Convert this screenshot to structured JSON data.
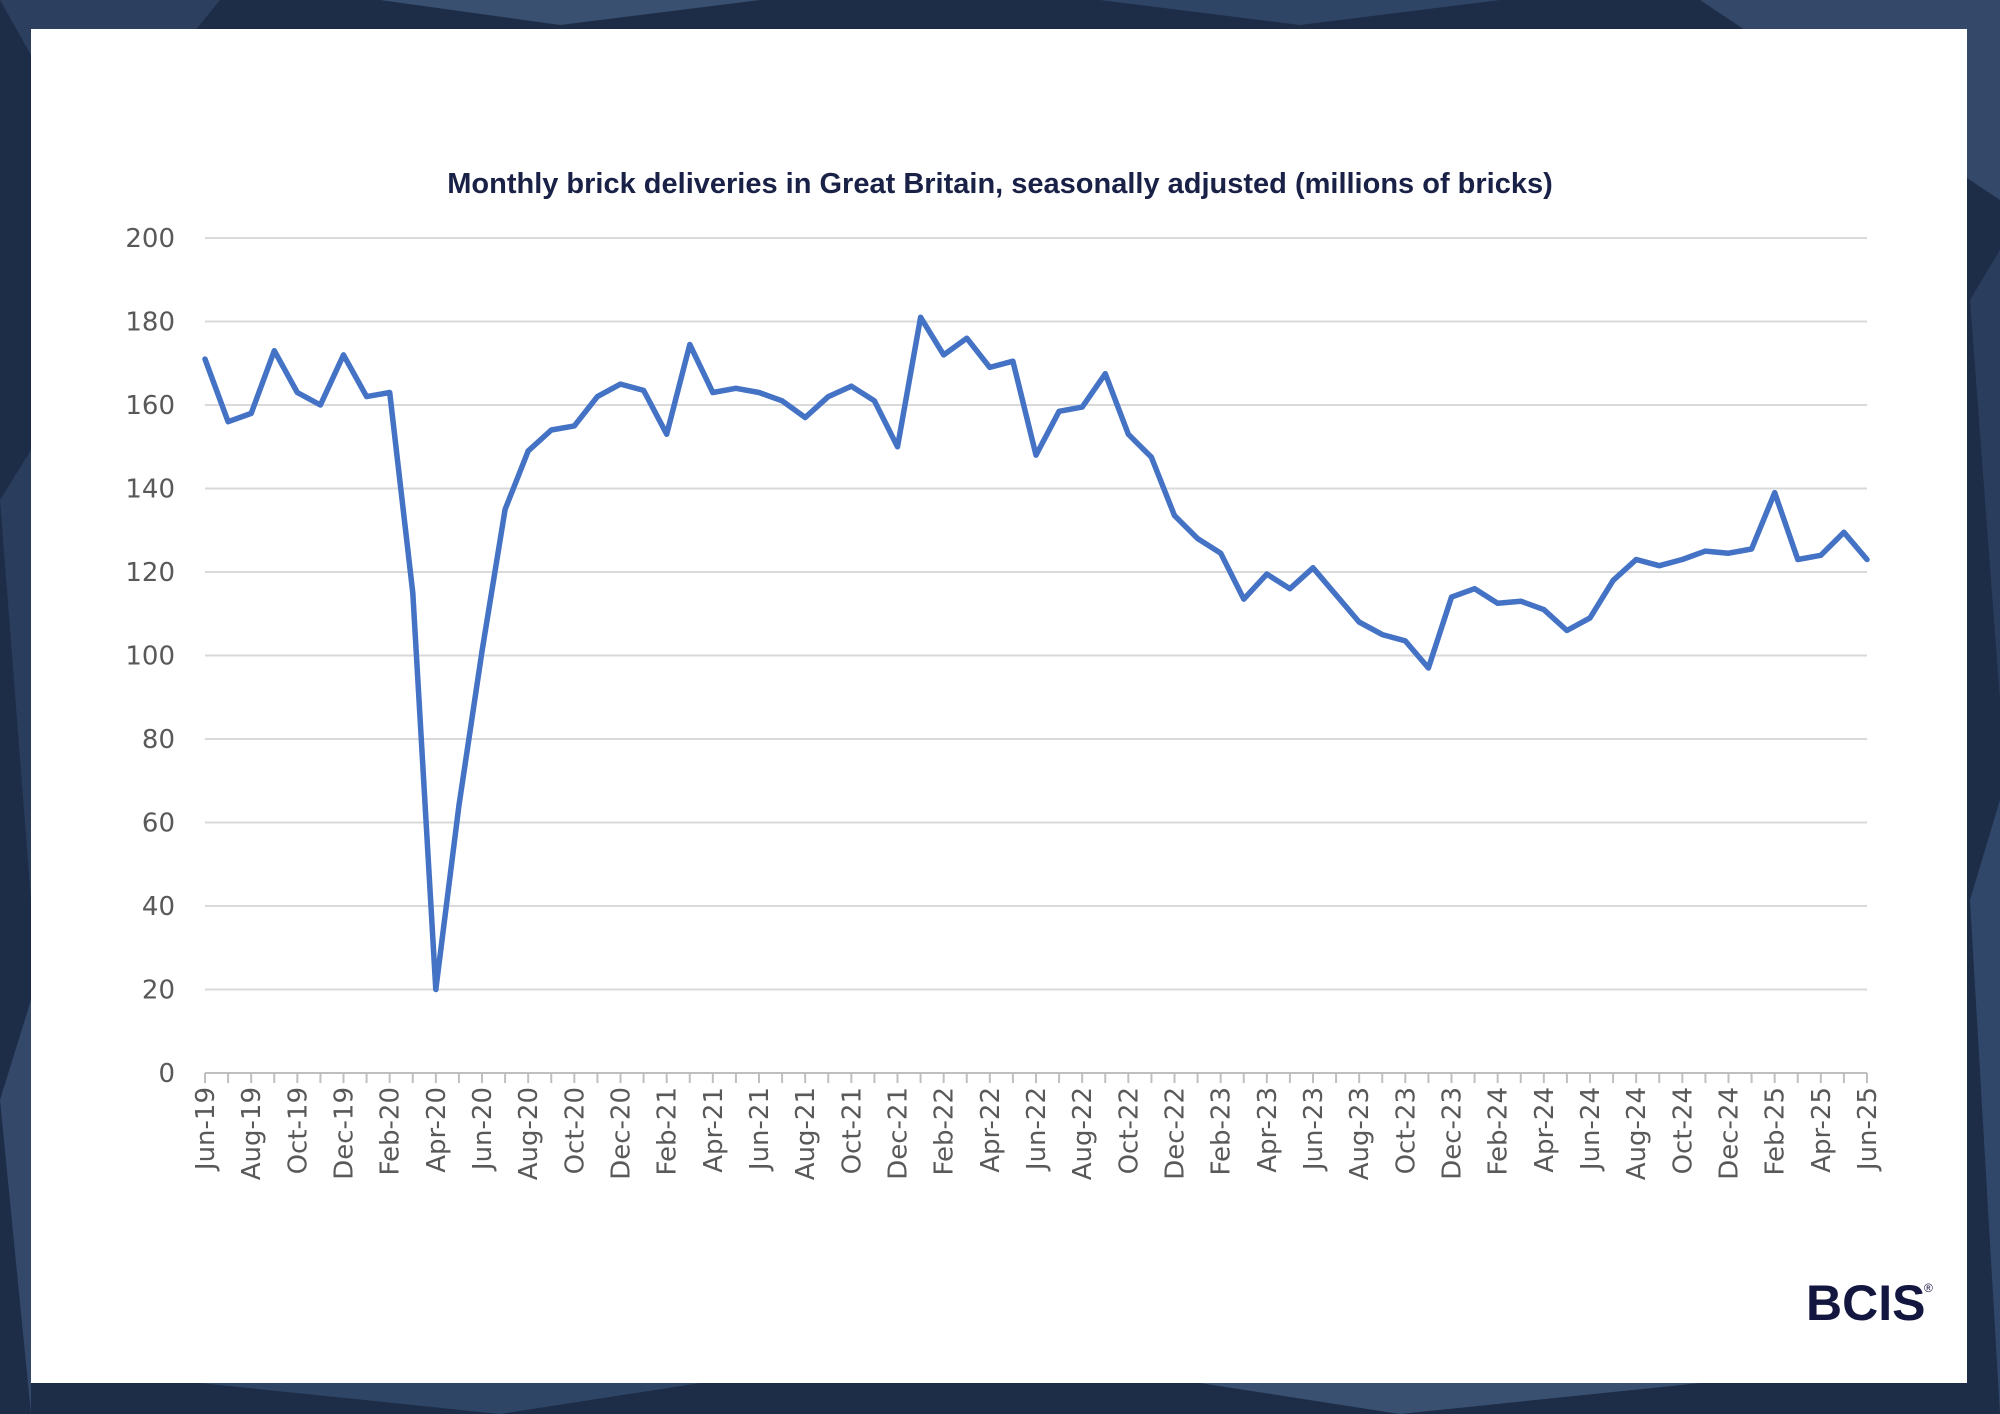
{
  "branding": {
    "logo_text": "BCIS",
    "logo_mark": "®"
  },
  "chart_data": {
    "type": "line",
    "title": "Monthly brick deliveries in Great Britain, seasonally adjusted (millions of bricks)",
    "xlabel": "",
    "ylabel": "",
    "ylim": [
      0,
      200
    ],
    "yticks": [
      0,
      20,
      40,
      60,
      80,
      100,
      120,
      140,
      160,
      180,
      200
    ],
    "grid": true,
    "legend": "none",
    "color": "#4472c4",
    "x": [
      "Jun-19",
      "Jul-19",
      "Aug-19",
      "Sep-19",
      "Oct-19",
      "Nov-19",
      "Dec-19",
      "Jan-20",
      "Feb-20",
      "Mar-20",
      "Apr-20",
      "May-20",
      "Jun-20",
      "Jul-20",
      "Aug-20",
      "Sep-20",
      "Oct-20",
      "Nov-20",
      "Dec-20",
      "Jan-21",
      "Feb-21",
      "Mar-21",
      "Apr-21",
      "May-21",
      "Jun-21",
      "Jul-21",
      "Aug-21",
      "Sep-21",
      "Oct-21",
      "Nov-21",
      "Dec-21",
      "Jan-22",
      "Feb-22",
      "Mar-22",
      "Apr-22",
      "May-22",
      "Jun-22",
      "Jul-22",
      "Aug-22",
      "Sep-22",
      "Oct-22",
      "Nov-22",
      "Dec-22",
      "Jan-23",
      "Feb-23",
      "Mar-23",
      "Apr-23",
      "May-23",
      "Jun-23",
      "Jul-23",
      "Aug-23",
      "Sep-23",
      "Oct-23",
      "Nov-23",
      "Dec-23",
      "Jan-24",
      "Feb-24",
      "Mar-24",
      "Apr-24",
      "May-24",
      "Jun-24",
      "Jul-24",
      "Aug-24",
      "Sep-24",
      "Oct-24",
      "Nov-24",
      "Dec-24",
      "Jan-25",
      "Feb-25",
      "Mar-25",
      "Apr-25",
      "May-25",
      "Jun-25"
    ],
    "x_tick_labels": [
      "Jun-19",
      "Aug-19",
      "Oct-19",
      "Dec-19",
      "Feb-20",
      "Apr-20",
      "Jun-20",
      "Aug-20",
      "Oct-20",
      "Dec-20",
      "Feb-21",
      "Apr-21",
      "Jun-21",
      "Aug-21",
      "Oct-21",
      "Dec-21",
      "Feb-22",
      "Apr-22",
      "Jun-22",
      "Aug-22",
      "Oct-22",
      "Dec-22",
      "Feb-23",
      "Apr-23",
      "Jun-23",
      "Aug-23",
      "Oct-23",
      "Dec-23",
      "Feb-24",
      "Apr-24",
      "Jun-24",
      "Aug-24",
      "Oct-24",
      "Dec-24",
      "Feb-25",
      "Apr-25",
      "Jun-25"
    ],
    "values": [
      171,
      156,
      158,
      173,
      163,
      160,
      172,
      162,
      163,
      115,
      20,
      64,
      101,
      135,
      149,
      154,
      155,
      162,
      165,
      163.5,
      153,
      174.5,
      163,
      164,
      163,
      161,
      157,
      162,
      164.5,
      161,
      150,
      181,
      172,
      176,
      169,
      170.5,
      148,
      158.5,
      159.5,
      167.5,
      153,
      147.5,
      133.5,
      128,
      124.5,
      113.5,
      119.5,
      116,
      121,
      114.5,
      108,
      105,
      103.5,
      97,
      114,
      116,
      112.5,
      113,
      111,
      106,
      109,
      118,
      123,
      121.5,
      123,
      125,
      124.5,
      125.5,
      139,
      123,
      124,
      129.5,
      123
    ]
  }
}
